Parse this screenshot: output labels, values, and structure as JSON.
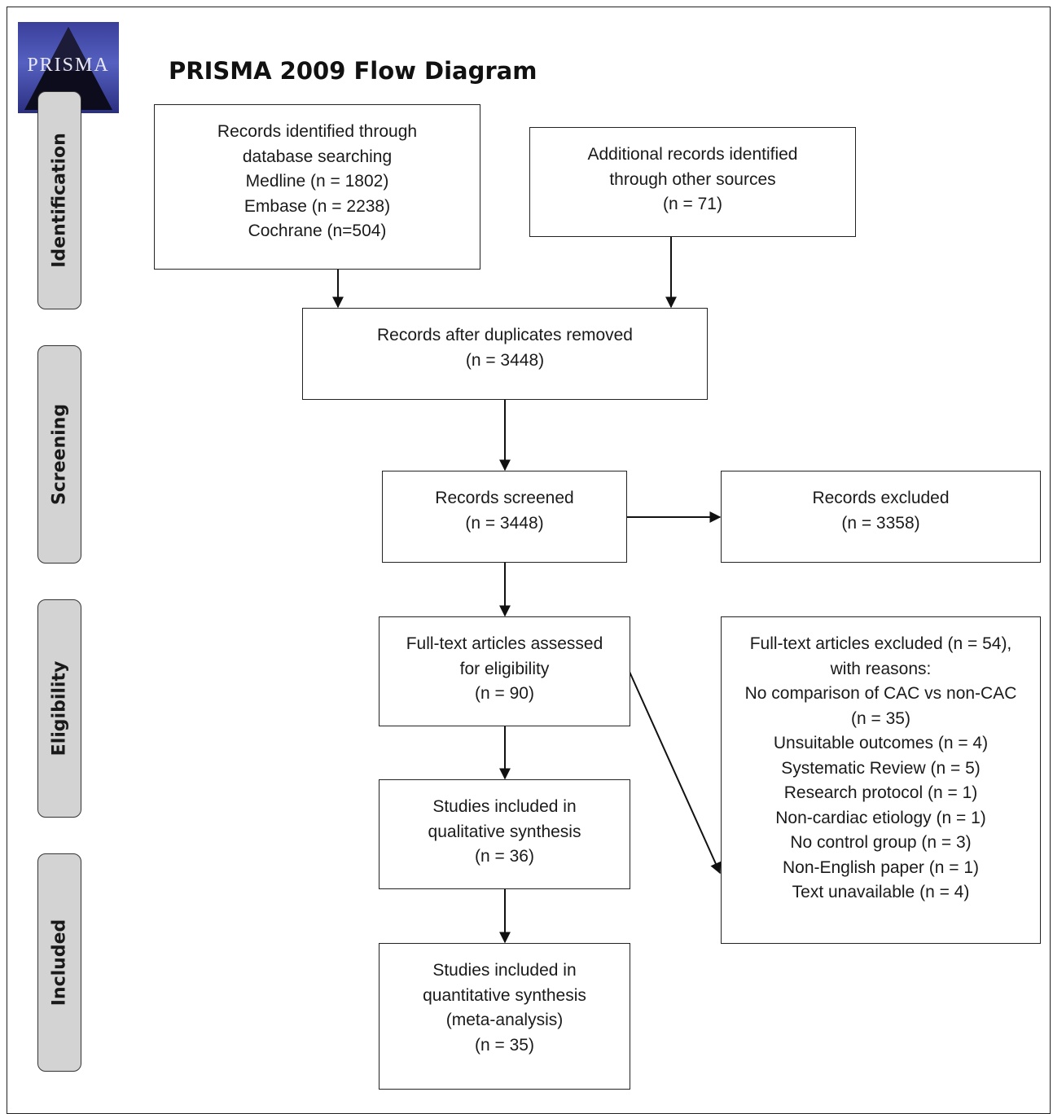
{
  "logo": {
    "text": "PRISMA"
  },
  "title": "PRISMA 2009 Flow Diagram",
  "stages": [
    {
      "label": "Identification"
    },
    {
      "label": "Screening"
    },
    {
      "label": "Eligibility"
    },
    {
      "label": "Included"
    }
  ],
  "boxes": {
    "db_search": {
      "lines": [
        "Records identified through",
        "database searching",
        "Medline (n = 1802)",
        "Embase (n = 2238)",
        "Cochrane (n=504)"
      ]
    },
    "other_sources": {
      "lines": [
        "Additional records identified",
        "through other sources",
        "(n = 71)"
      ]
    },
    "duplicates_removed": {
      "lines": [
        "Records after duplicates removed",
        "(n = 3448)"
      ]
    },
    "screened": {
      "lines": [
        "Records screened",
        "(n = 3448)"
      ]
    },
    "excluded": {
      "lines": [
        "Records excluded",
        "(n = 3358)"
      ]
    },
    "fulltext_assessed": {
      "lines": [
        "Full-text articles assessed",
        "for eligibility",
        "(n = 90)"
      ]
    },
    "fulltext_excluded": {
      "lines": [
        "Full-text articles excluded (n = 54),",
        "with reasons:",
        "No comparison of CAC vs non-CAC",
        "(n = 35)",
        "Unsuitable outcomes  (n = 4)",
        "Systematic Review (n = 5)",
        "Research protocol (n = 1)",
        "Non-cardiac etiology (n = 1)",
        "No control group (n = 3)",
        "Non-English paper (n = 1)",
        "Text unavailable (n = 4)"
      ]
    },
    "qualitative": {
      "lines": [
        "Studies included in",
        "qualitative synthesis",
        "(n = 36)"
      ]
    },
    "quantitative": {
      "lines": [
        "Studies included in",
        "quantitative synthesis",
        "(meta-analysis)",
        "(n = 35)"
      ]
    }
  }
}
